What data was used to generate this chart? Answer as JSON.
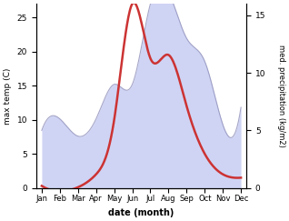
{
  "months": [
    "Jan",
    "Feb",
    "Mar",
    "Apr",
    "May",
    "Jun",
    "Jul",
    "Aug",
    "Sep",
    "Oct",
    "Nov",
    "Dec"
  ],
  "temp_max": [
    0.3,
    -0.5,
    0.1,
    2.0,
    10.0,
    27.0,
    19.0,
    19.5,
    12.0,
    5.0,
    2.0,
    1.5
  ],
  "precip": [
    5.0,
    6.0,
    4.5,
    6.0,
    9.0,
    9.0,
    16.0,
    17.0,
    13.0,
    11.0,
    5.5,
    7.0
  ],
  "temp_color": "#cc3333",
  "precip_color_fill": "#b0b8ee",
  "precip_color_line": "#9090bb",
  "fill_alpha": 0.6,
  "ylabel_left": "max temp (C)",
  "ylabel_right": "med. precipitation (kg/m2)",
  "xlabel": "date (month)",
  "ylim_left": [
    0,
    27
  ],
  "ylim_right": [
    0,
    16
  ],
  "yticks_left": [
    0,
    5,
    10,
    15,
    20,
    25
  ],
  "yticks_right": [
    0,
    5,
    10,
    15
  ],
  "background_color": "#ffffff"
}
